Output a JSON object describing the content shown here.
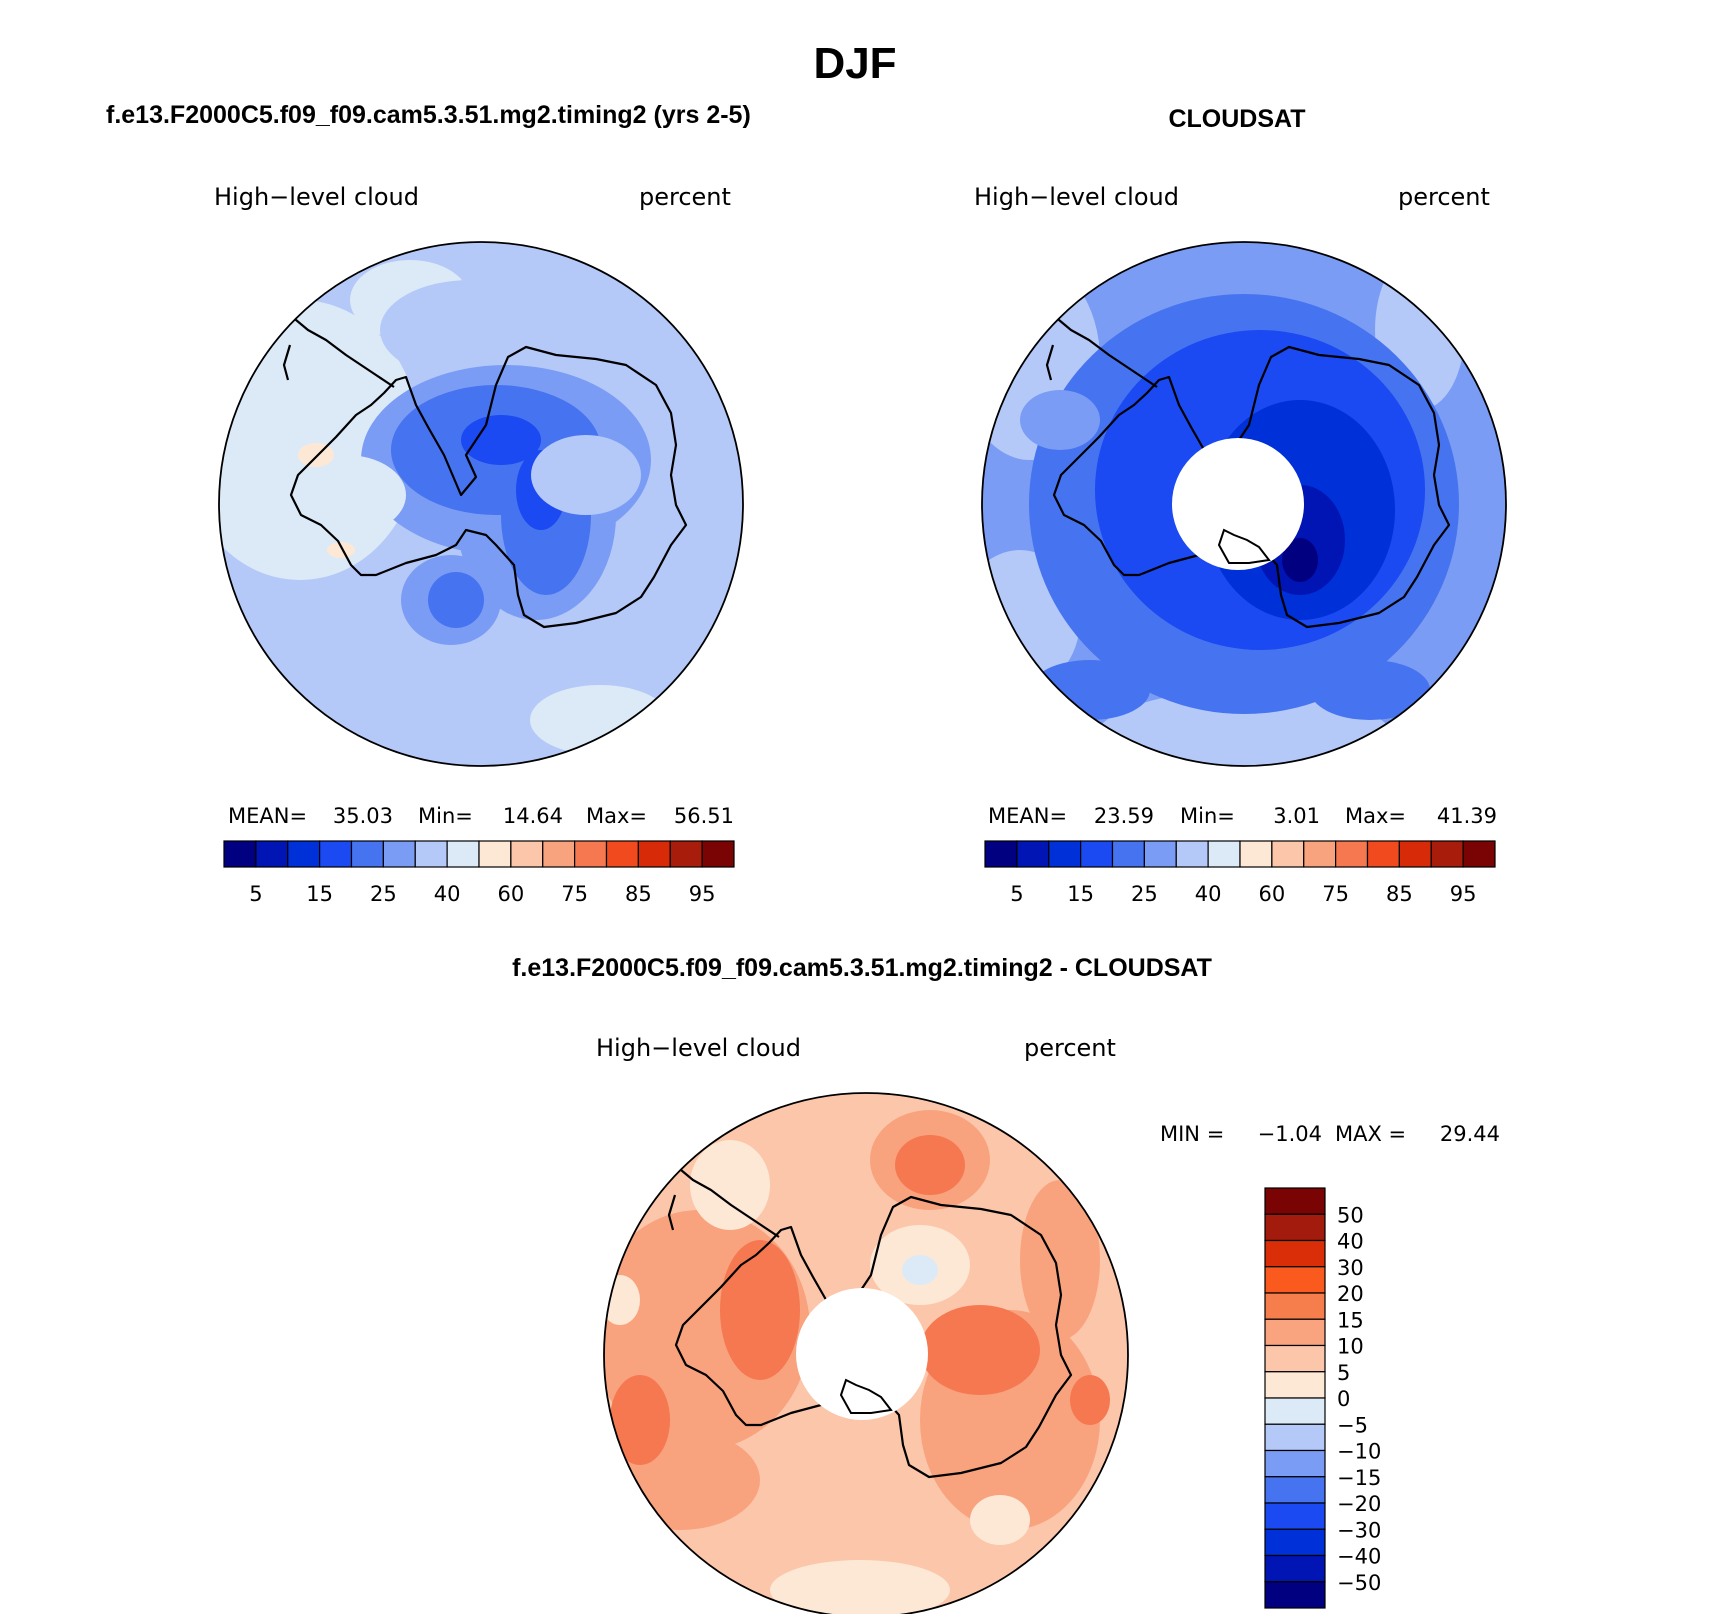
{
  "title": "DJF",
  "panels": [
    {
      "id": "model",
      "header": "f.e13.F2000C5.f09_f09.cam5.3.51.mg2.timing2 (yrs 2-5)",
      "variable": "High−level cloud",
      "units": "percent",
      "stats": {
        "mean_label": "MEAN=",
        "mean": "35.03",
        "min_label": "Min=",
        "min": "14.64",
        "max_label": "Max=",
        "max": "56.51"
      }
    },
    {
      "id": "obs",
      "header": "CLOUDSAT",
      "variable": "High−level cloud",
      "units": "percent",
      "stats": {
        "mean_label": "MEAN=",
        "mean": "23.59",
        "min_label": "Min=",
        "min": "3.01",
        "max_label": "Max=",
        "max": "41.39"
      }
    },
    {
      "id": "diff",
      "header": "f.e13.F2000C5.f09_f09.cam5.3.51.mg2.timing2 - CLOUDSAT",
      "variable": "High−level cloud",
      "units": "percent",
      "stats": {
        "min_label": "MIN =",
        "min": "−1.04",
        "max_label": "MAX =",
        "max": "29.44"
      }
    }
  ],
  "colorbar_main": {
    "colors": [
      "#000080",
      "#0015b4",
      "#0030d8",
      "#1b49f2",
      "#4673f0",
      "#7a9cf4",
      "#b4c9f8",
      "#dceaf8",
      "#fde8d6",
      "#fcc6aa",
      "#f9a27e",
      "#f57850",
      "#f04a1e",
      "#d72a08",
      "#a81c0c",
      "#7a0404"
    ],
    "labels": [
      "5",
      "15",
      "25",
      "40",
      "60",
      "75",
      "85",
      "95"
    ]
  },
  "colorbar_diff": {
    "colors": [
      "#7a0404",
      "#a31b0c",
      "#d92e08",
      "#fb5a1f",
      "#f57e4c",
      "#f9a47e",
      "#fcc6aa",
      "#fde8d6",
      "#dceaf8",
      "#b4c9f8",
      "#7a9cf4",
      "#4673f0",
      "#1b49f2",
      "#0030d8",
      "#0015b4",
      "#000080"
    ],
    "labels": [
      "50",
      "40",
      "30",
      "20",
      "15",
      "10",
      "5",
      "0",
      "−5",
      "−10",
      "−15",
      "−20",
      "−30",
      "−40",
      "−50"
    ]
  },
  "chart_data": [
    {
      "type": "heatmap",
      "title": "f.e13.F2000C5.f09_f09.cam5.3.51.mg2.timing2 (yrs 2-5)",
      "variable": "High-level cloud",
      "units": "percent",
      "projection": "south polar stereographic",
      "contour_levels": [
        5,
        10,
        15,
        20,
        25,
        30,
        35,
        40,
        50,
        60,
        70,
        75,
        80,
        85,
        90,
        95
      ],
      "mean": 35.03,
      "min": 14.64,
      "max": 56.51
    },
    {
      "type": "heatmap",
      "title": "CLOUDSAT",
      "variable": "High-level cloud",
      "units": "percent",
      "projection": "south polar stereographic",
      "contour_levels": [
        5,
        10,
        15,
        20,
        25,
        30,
        35,
        40,
        50,
        60,
        70,
        75,
        80,
        85,
        90,
        95
      ],
      "mean": 23.59,
      "min": 3.01,
      "max": 41.39
    },
    {
      "type": "heatmap",
      "title": "f.e13.F2000C5.f09_f09.cam5.3.51.mg2.timing2 - CLOUDSAT",
      "variable": "High-level cloud",
      "units": "percent",
      "projection": "south polar stereographic",
      "contour_levels": [
        -50,
        -40,
        -30,
        -20,
        -15,
        -10,
        -5,
        0,
        5,
        10,
        15,
        20,
        30,
        40,
        50
      ],
      "min": -1.04,
      "max": 29.44
    }
  ]
}
